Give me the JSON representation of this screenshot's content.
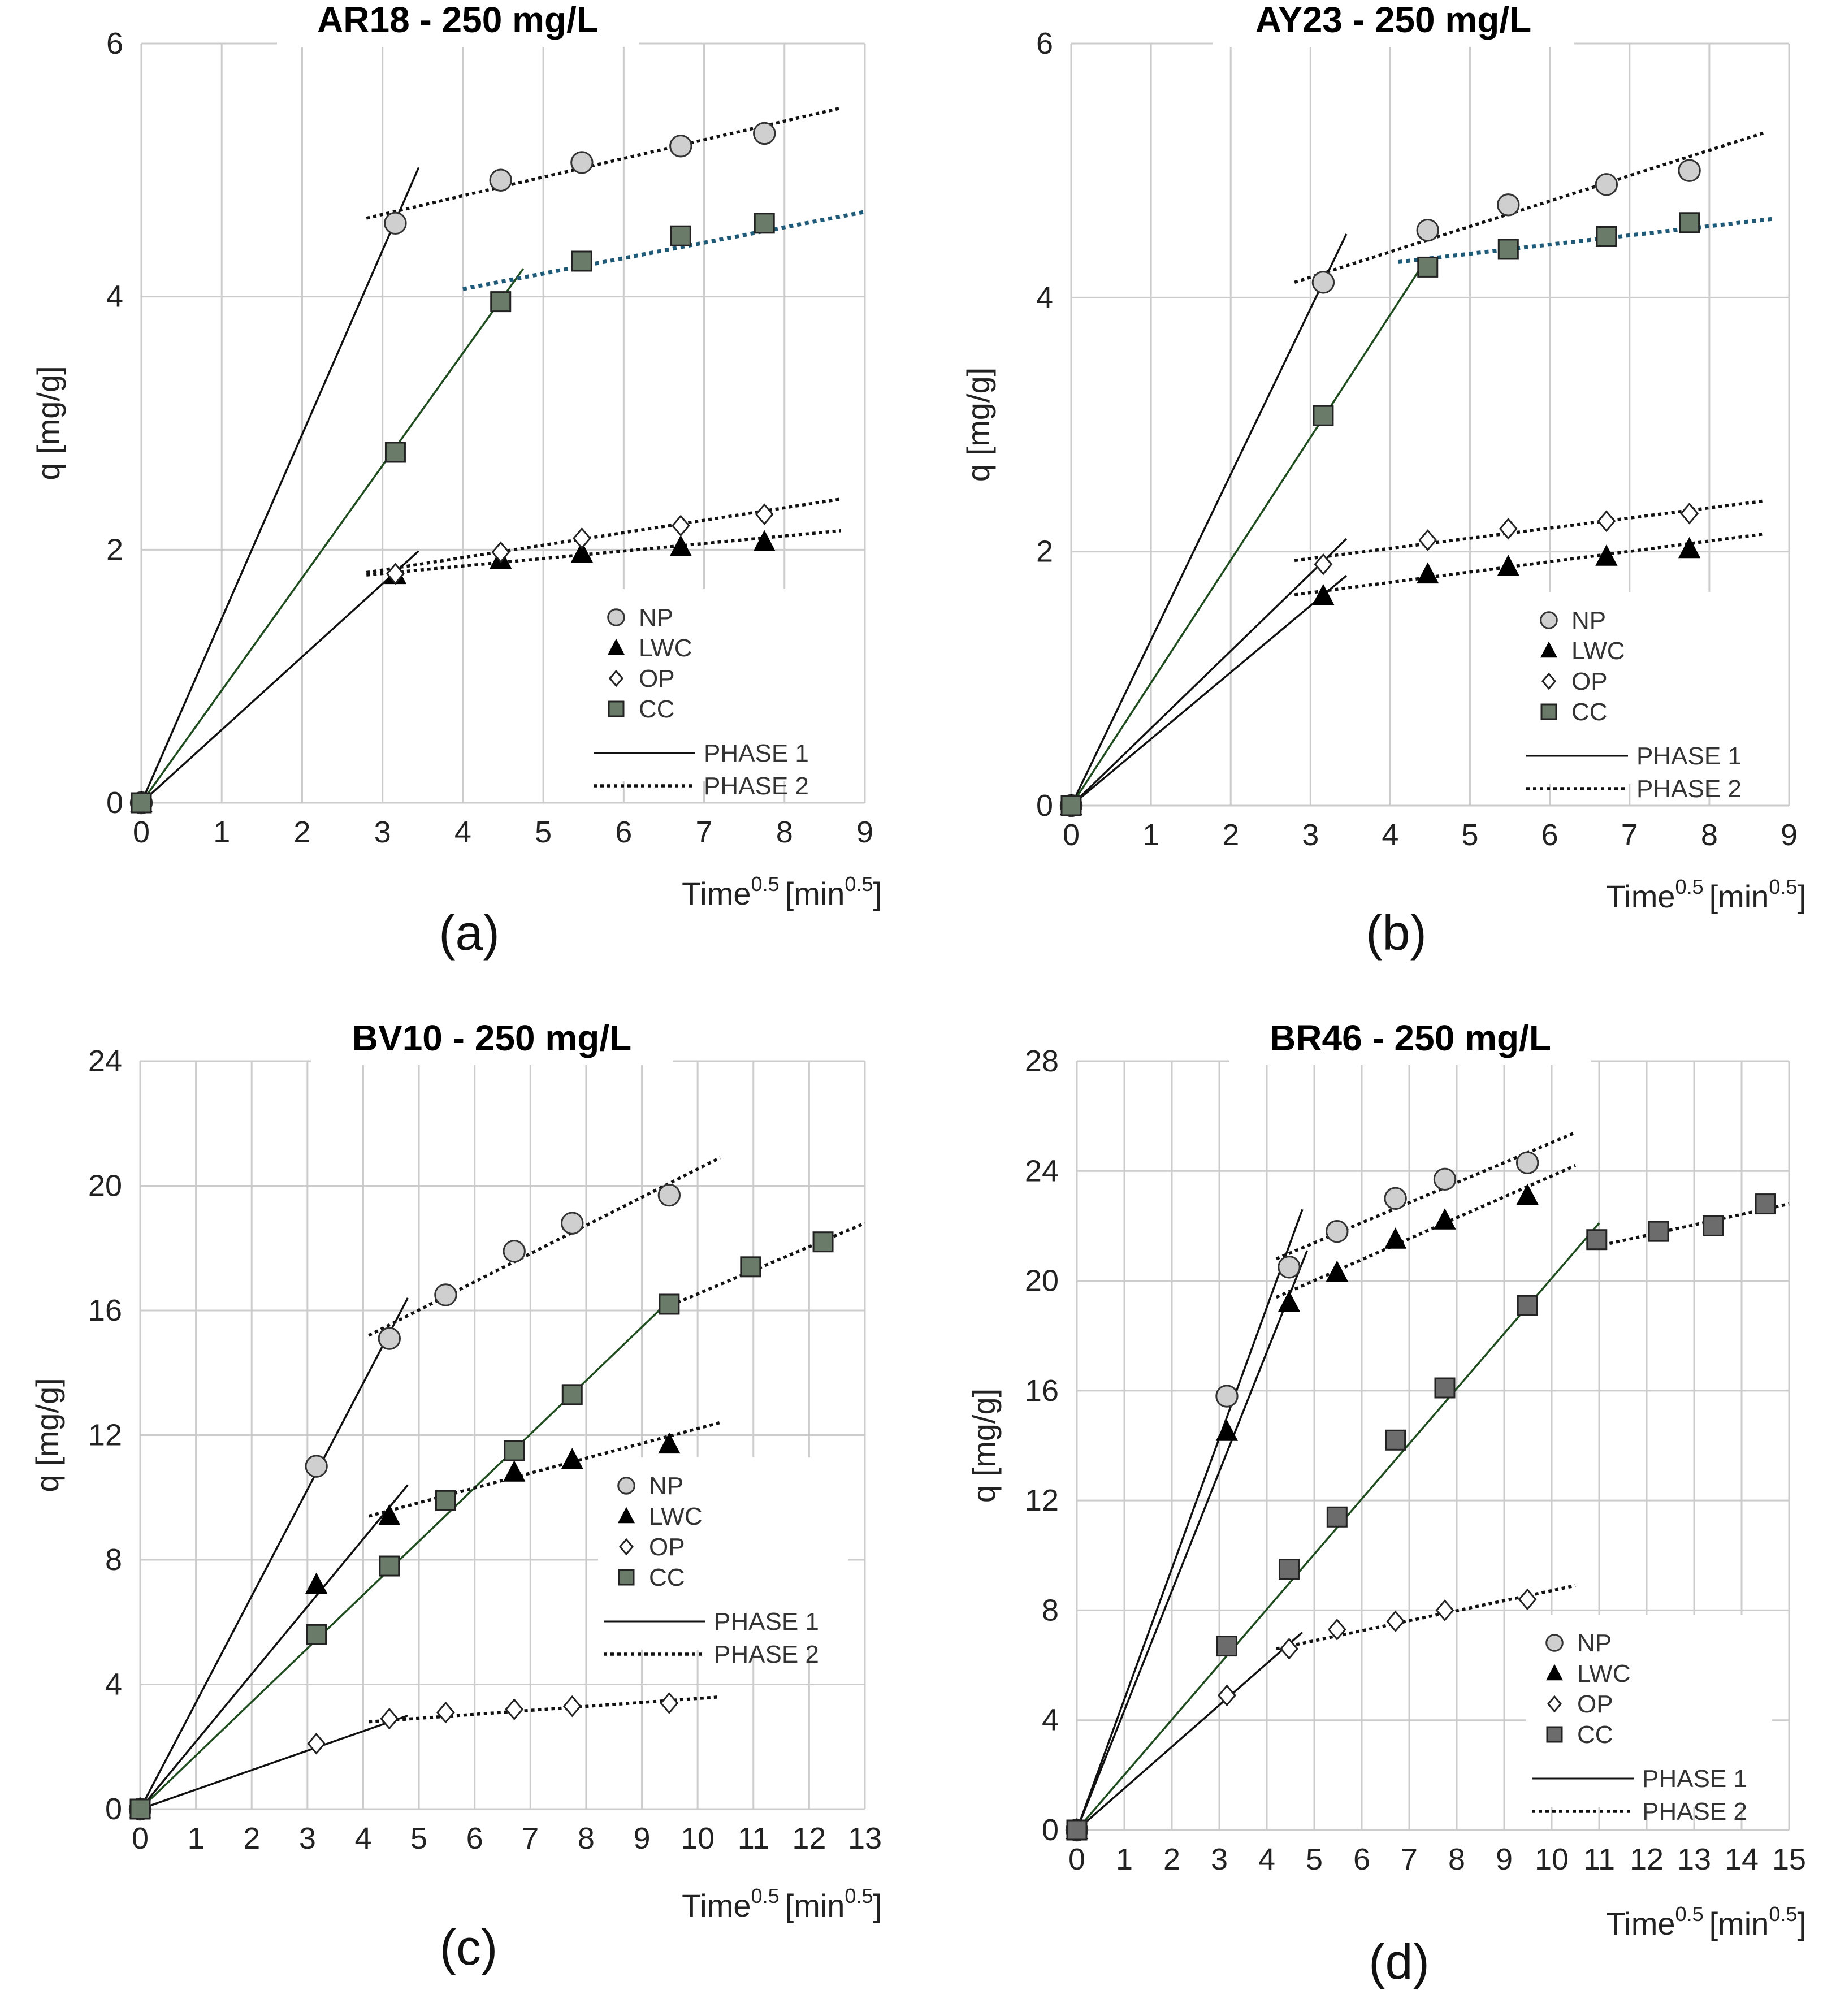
{
  "colors": {
    "grid": "#cccccc",
    "np_fill": "#cfcfcf",
    "cc_fill": "#6b7b6a",
    "cc_fill_dark": "#6c6c6c",
    "phase_line": "#111111",
    "cc_phase1": "#1f4d1f",
    "cc_phase2_blue": "#1e5a78"
  },
  "legend": {
    "np": "NP",
    "lwc": "LWC",
    "op": "OP",
    "cc": "CC",
    "phase1": "PHASE 1",
    "phase2": "PHASE 2"
  },
  "chart_data": [
    {
      "panel": "(a)",
      "type": "scatter",
      "title": "AR18 - 250 mg/L",
      "xlabel_main": "Time",
      "xlabel_sup1": "0.5",
      "xlabel_unit": "[min",
      "xlabel_sup2": "0.5",
      "xlabel_close": "]",
      "ylabel": "q [mg/g]",
      "xlim": [
        0,
        9
      ],
      "ylim": [
        0,
        6
      ],
      "xticks": [
        0,
        1,
        2,
        3,
        4,
        5,
        6,
        7,
        8,
        9
      ],
      "yticks": [
        0,
        2,
        4,
        6
      ],
      "series": [
        {
          "name": "NP",
          "marker": "circle",
          "x": [
            0,
            3.16,
            4.47,
            5.48,
            6.71,
            7.75
          ],
          "y": [
            0,
            4.58,
            4.92,
            5.06,
            5.19,
            5.29
          ]
        },
        {
          "name": "LWC",
          "marker": "triangle",
          "x": [
            0,
            3.16,
            4.47,
            5.48,
            6.71,
            7.75
          ],
          "y": [
            0,
            1.8,
            1.92,
            1.97,
            2.02,
            2.06
          ]
        },
        {
          "name": "OP",
          "marker": "diamond",
          "x": [
            0,
            3.16,
            4.47,
            5.48,
            6.71,
            7.75
          ],
          "y": [
            0,
            1.81,
            1.98,
            2.09,
            2.19,
            2.28
          ]
        },
        {
          "name": "CC",
          "marker": "square",
          "x": [
            0,
            3.16,
            4.47,
            5.48,
            6.71,
            7.75
          ],
          "y": [
            0,
            2.77,
            3.96,
            4.28,
            4.48,
            4.58
          ]
        }
      ],
      "fits": [
        {
          "phase": 1,
          "x": [
            0,
            3.45
          ],
          "y": [
            0,
            5.02
          ],
          "color_key": "phase_line"
        },
        {
          "phase": 1,
          "x": [
            0,
            4.75
          ],
          "y": [
            0,
            4.22
          ],
          "color_key": "cc_phase1"
        },
        {
          "phase": 1,
          "x": [
            0,
            3.45
          ],
          "y": [
            0,
            1.99
          ],
          "color_key": "phase_line"
        },
        {
          "phase": 2,
          "x": [
            2.8,
            8.7
          ],
          "y": [
            4.62,
            5.49
          ],
          "color_key": "phase_line"
        },
        {
          "phase": 2,
          "x": [
            4.0,
            9.0
          ],
          "y": [
            4.06,
            4.67
          ],
          "color_key": "cc_phase2_blue"
        },
        {
          "phase": 2,
          "x": [
            2.8,
            8.7
          ],
          "y": [
            1.82,
            2.4
          ],
          "color_key": "phase_line"
        },
        {
          "phase": 2,
          "x": [
            2.8,
            8.7
          ],
          "y": [
            1.8,
            2.15
          ],
          "color_key": "phase_line"
        }
      ]
    },
    {
      "panel": "(b)",
      "type": "scatter",
      "title": "AY23 - 250 mg/L",
      "xlabel_main": "Time",
      "xlabel_sup1": "0.5",
      "xlabel_unit": "[min",
      "xlabel_sup2": "0.5",
      "xlabel_close": "]",
      "ylabel": "q [mg/g]",
      "xlim": [
        0,
        9
      ],
      "ylim": [
        0,
        6
      ],
      "xticks": [
        0,
        1,
        2,
        3,
        4,
        5,
        6,
        7,
        8,
        9
      ],
      "yticks": [
        0,
        2,
        4,
        6
      ],
      "series": [
        {
          "name": "NP",
          "marker": "circle",
          "x": [
            0,
            3.16,
            4.47,
            5.48,
            6.71,
            7.75
          ],
          "y": [
            0,
            4.12,
            4.53,
            4.73,
            4.89,
            5.0
          ]
        },
        {
          "name": "LWC",
          "marker": "triangle",
          "x": [
            0,
            3.16,
            4.47,
            5.48,
            6.71,
            7.75
          ],
          "y": [
            0,
            1.65,
            1.82,
            1.88,
            1.96,
            2.02
          ]
        },
        {
          "name": "OP",
          "marker": "diamond",
          "x": [
            0,
            3.16,
            4.47,
            5.48,
            6.71,
            7.75
          ],
          "y": [
            0,
            1.9,
            2.09,
            2.18,
            2.24,
            2.3
          ]
        },
        {
          "name": "CC",
          "marker": "square",
          "x": [
            0,
            3.16,
            4.47,
            5.48,
            6.71,
            7.75
          ],
          "y": [
            0,
            3.07,
            4.24,
            4.38,
            4.48,
            4.59
          ]
        }
      ],
      "fits": [
        {
          "phase": 1,
          "x": [
            0,
            3.45
          ],
          "y": [
            0,
            4.5
          ],
          "color_key": "phase_line"
        },
        {
          "phase": 1,
          "x": [
            0,
            4.45
          ],
          "y": [
            0,
            4.3
          ],
          "color_key": "cc_phase1"
        },
        {
          "phase": 1,
          "x": [
            0,
            3.45
          ],
          "y": [
            0,
            2.1
          ],
          "color_key": "phase_line"
        },
        {
          "phase": 1,
          "x": [
            0,
            3.45
          ],
          "y": [
            0,
            1.81
          ],
          "color_key": "phase_line"
        },
        {
          "phase": 2,
          "x": [
            2.8,
            8.7
          ],
          "y": [
            4.12,
            5.3
          ],
          "color_key": "phase_line"
        },
        {
          "phase": 2,
          "x": [
            4.1,
            8.8
          ],
          "y": [
            4.28,
            4.62
          ],
          "color_key": "cc_phase2_blue"
        },
        {
          "phase": 2,
          "x": [
            2.8,
            8.7
          ],
          "y": [
            1.93,
            2.4
          ],
          "color_key": "phase_line"
        },
        {
          "phase": 2,
          "x": [
            2.8,
            8.7
          ],
          "y": [
            1.66,
            2.14
          ],
          "color_key": "phase_line"
        }
      ]
    },
    {
      "panel": "(c)",
      "type": "scatter",
      "title": "BV10 - 250 mg/L",
      "xlabel_main": "Time",
      "xlabel_sup1": "0.5",
      "xlabel_unit": "[min",
      "xlabel_sup2": "0.5",
      "xlabel_close": "]",
      "ylabel": "q [mg/g]",
      "xlim": [
        0,
        13
      ],
      "ylim": [
        0,
        24
      ],
      "xticks": [
        0,
        1,
        2,
        3,
        4,
        5,
        6,
        7,
        8,
        9,
        10,
        11,
        12,
        13
      ],
      "yticks": [
        0,
        4,
        8,
        12,
        16,
        20,
        24
      ],
      "series": [
        {
          "name": "NP",
          "marker": "circle",
          "x": [
            0,
            3.16,
            4.47,
            5.48,
            6.71,
            7.75,
            9.49
          ],
          "y": [
            0,
            11.0,
            15.1,
            16.5,
            17.9,
            18.8,
            19.7
          ]
        },
        {
          "name": "LWC",
          "marker": "triangle",
          "x": [
            0,
            3.16,
            4.47,
            6.71,
            7.75,
            9.49
          ],
          "y": [
            0,
            7.2,
            9.4,
            10.8,
            11.2,
            11.7
          ]
        },
        {
          "name": "OP",
          "marker": "diamond",
          "x": [
            0,
            3.16,
            4.47,
            5.48,
            6.71,
            7.75,
            9.49
          ],
          "y": [
            0,
            2.1,
            2.9,
            3.1,
            3.2,
            3.3,
            3.4
          ]
        },
        {
          "name": "CC",
          "marker": "square",
          "x": [
            0,
            3.16,
            4.47,
            5.48,
            6.71,
            7.75,
            9.49,
            10.95,
            12.25
          ],
          "y": [
            0,
            5.6,
            7.8,
            9.9,
            11.5,
            13.3,
            16.2,
            17.4,
            18.2
          ]
        }
      ],
      "fits": [
        {
          "phase": 1,
          "x": [
            0,
            4.8
          ],
          "y": [
            0,
            16.4
          ],
          "color_key": "phase_line"
        },
        {
          "phase": 1,
          "x": [
            0,
            4.8
          ],
          "y": [
            0,
            10.4
          ],
          "color_key": "phase_line"
        },
        {
          "phase": 1,
          "x": [
            0,
            9.6
          ],
          "y": [
            0,
            16.5
          ],
          "color_key": "cc_phase1"
        },
        {
          "phase": 1,
          "x": [
            0,
            4.8
          ],
          "y": [
            0,
            3.0
          ],
          "color_key": "phase_line"
        },
        {
          "phase": 2,
          "x": [
            4.1,
            10.4
          ],
          "y": [
            15.2,
            20.9
          ],
          "color_key": "phase_line"
        },
        {
          "phase": 2,
          "x": [
            4.1,
            10.4
          ],
          "y": [
            9.4,
            12.4
          ],
          "color_key": "phase_line"
        },
        {
          "phase": 2,
          "x": [
            9.3,
            13.0
          ],
          "y": [
            16.0,
            18.8
          ],
          "color_key": "phase_line"
        },
        {
          "phase": 2,
          "x": [
            4.1,
            10.4
          ],
          "y": [
            2.8,
            3.6
          ],
          "color_key": "phase_line"
        }
      ]
    },
    {
      "panel": "(d)",
      "type": "scatter",
      "title": "BR46 - 250 mg/L",
      "xlabel_main": "Time",
      "xlabel_sup1": "0.5",
      "xlabel_unit": "[min",
      "xlabel_sup2": "0.5",
      "xlabel_close": "]",
      "ylabel": "q [mg/g]",
      "xlim": [
        0,
        15
      ],
      "ylim": [
        0,
        28
      ],
      "xticks": [
        0,
        1,
        2,
        3,
        4,
        5,
        6,
        7,
        8,
        9,
        10,
        11,
        12,
        13,
        14,
        15
      ],
      "yticks": [
        0,
        4,
        8,
        12,
        16,
        20,
        24,
        28
      ],
      "series": [
        {
          "name": "NP",
          "marker": "circle",
          "x": [
            0,
            3.16,
            4.47,
            5.48,
            6.71,
            7.75,
            9.49
          ],
          "y": [
            0,
            15.8,
            20.5,
            21.8,
            23.0,
            23.7,
            24.3
          ]
        },
        {
          "name": "LWC",
          "marker": "triangle",
          "x": [
            0,
            3.16,
            4.47,
            5.48,
            6.71,
            7.75,
            9.49
          ],
          "y": [
            0,
            14.5,
            19.2,
            20.3,
            21.5,
            22.2,
            23.1
          ]
        },
        {
          "name": "OP",
          "marker": "diamond",
          "x": [
            0,
            3.16,
            4.47,
            5.48,
            6.71,
            7.75,
            9.49
          ],
          "y": [
            0,
            4.9,
            6.6,
            7.3,
            7.6,
            8.0,
            8.4
          ]
        },
        {
          "name": "CC",
          "marker": "square",
          "x": [
            0,
            3.16,
            4.47,
            5.48,
            6.71,
            7.75,
            9.49,
            10.95,
            12.25,
            13.4,
            14.5
          ],
          "y": [
            0,
            6.7,
            9.5,
            11.4,
            14.2,
            16.1,
            19.1,
            21.5,
            21.8,
            22.0,
            22.8
          ]
        }
      ],
      "fits": [
        {
          "phase": 1,
          "x": [
            0,
            4.75
          ],
          "y": [
            0,
            22.6
          ],
          "color_key": "phase_line"
        },
        {
          "phase": 1,
          "x": [
            0,
            4.85
          ],
          "y": [
            0,
            21.1
          ],
          "color_key": "phase_line"
        },
        {
          "phase": 1,
          "x": [
            0,
            11.0
          ],
          "y": [
            0,
            22.1
          ],
          "color_key": "cc_phase1"
        },
        {
          "phase": 1,
          "x": [
            0,
            4.75
          ],
          "y": [
            0,
            7.2
          ],
          "color_key": "phase_line"
        },
        {
          "phase": 2,
          "x": [
            4.2,
            10.5
          ],
          "y": [
            20.8,
            25.4
          ],
          "color_key": "phase_line"
        },
        {
          "phase": 2,
          "x": [
            4.2,
            10.5
          ],
          "y": [
            19.4,
            24.2
          ],
          "color_key": "phase_line"
        },
        {
          "phase": 2,
          "x": [
            10.8,
            15.0
          ],
          "y": [
            21.2,
            22.8
          ],
          "color_key": "phase_line"
        },
        {
          "phase": 2,
          "x": [
            4.2,
            10.5
          ],
          "y": [
            6.6,
            8.9
          ],
          "color_key": "phase_line"
        }
      ]
    }
  ]
}
